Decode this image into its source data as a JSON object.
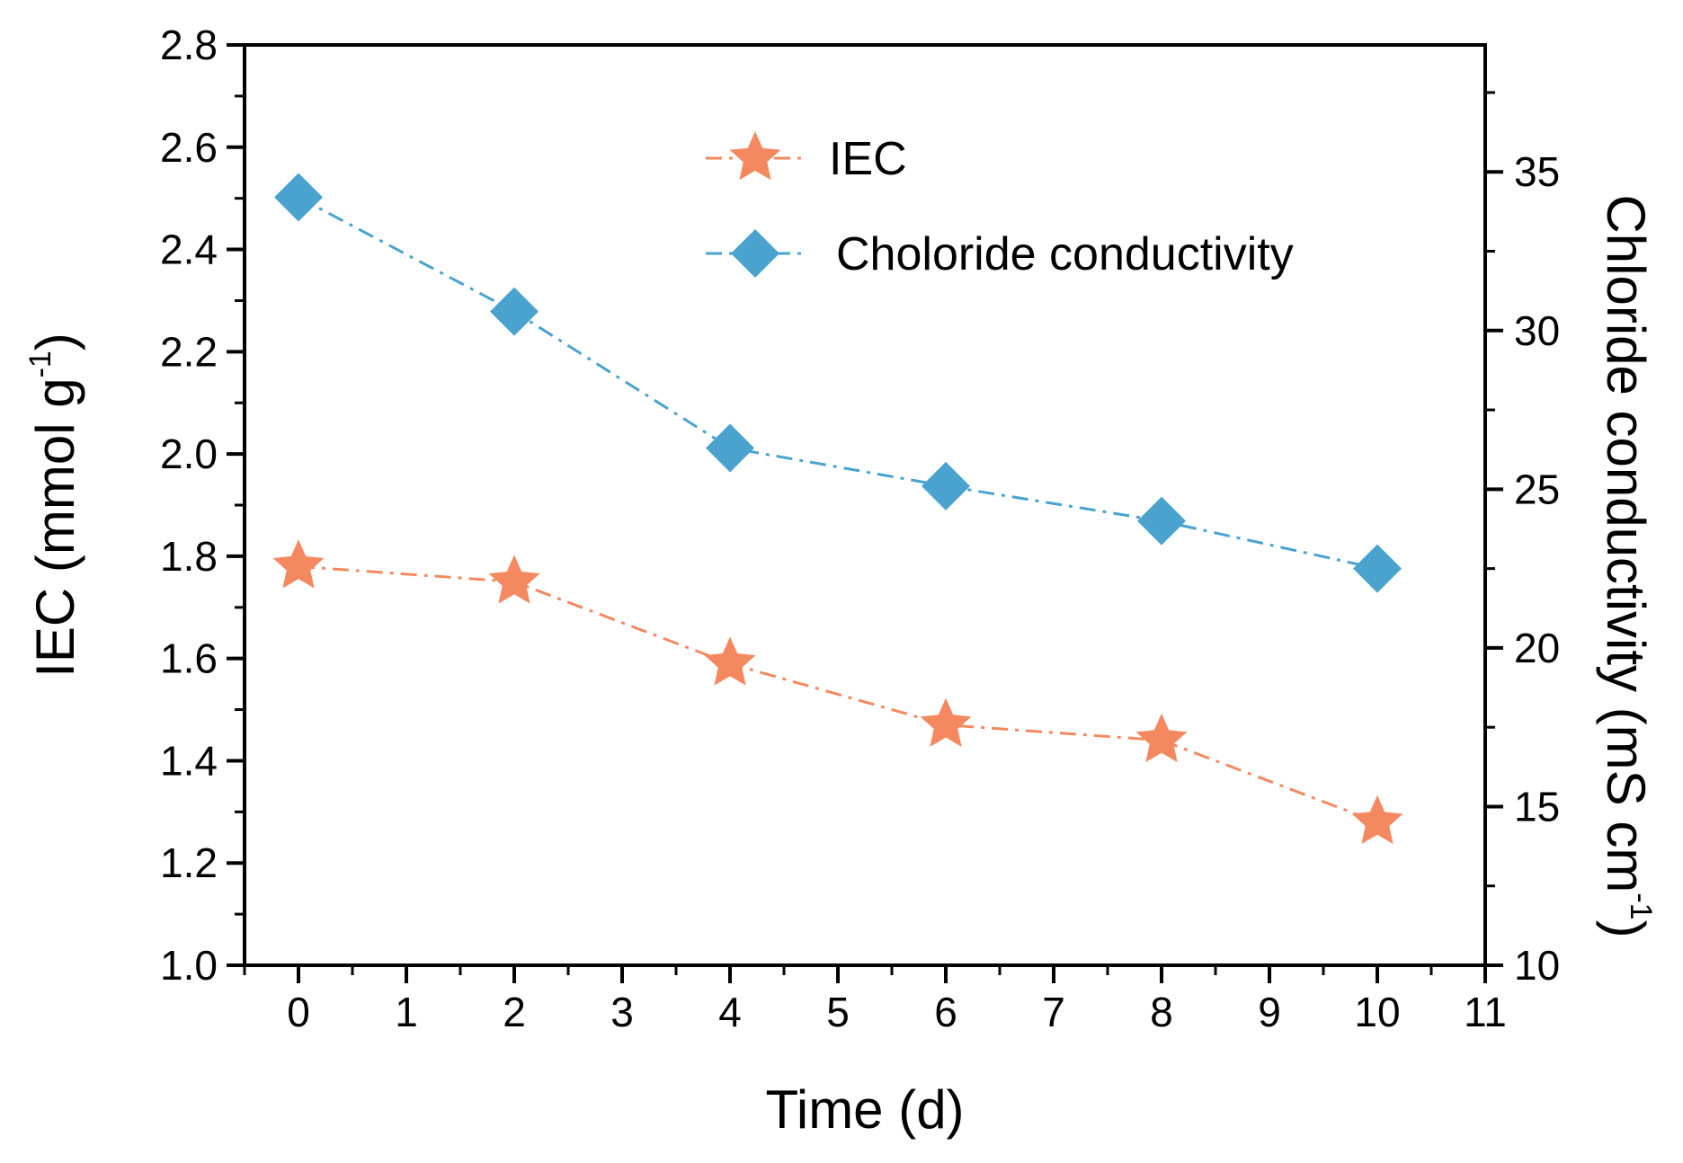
{
  "chart_data": {
    "type": "line",
    "x": [
      0,
      2,
      4,
      6,
      8,
      10
    ],
    "xlabel": "Time (d)",
    "xlim": [
      -0.5,
      11
    ],
    "xticks": [
      "0",
      "1",
      "2",
      "3",
      "4",
      "5",
      "6",
      "7",
      "8",
      "9",
      "10",
      "11"
    ],
    "ylabel_left": {
      "main": "IEC (mmol g",
      "sup": "-1",
      "close": ")"
    },
    "ylim_left": [
      1.0,
      2.8
    ],
    "yticks_left": [
      "1.0",
      "1.2",
      "1.4",
      "1.6",
      "1.8",
      "2.0",
      "2.2",
      "2.4",
      "2.6",
      "2.8"
    ],
    "ylabel_right": {
      "main": "Chloride conductivity (mS cm",
      "sup": "-1",
      "close": ")"
    },
    "ylim_right": [
      10,
      39
    ],
    "yticks_right": [
      "10",
      "15",
      "20",
      "25",
      "30",
      "35"
    ],
    "series": [
      {
        "name": "IEC",
        "axis": "left",
        "marker": "star",
        "line_style": "dash-dot",
        "color": "#f4895f",
        "values": [
          1.78,
          1.75,
          1.59,
          1.47,
          1.44,
          1.28
        ]
      },
      {
        "name": "Choloride conductivity",
        "axis": "right",
        "marker": "diamond",
        "line_style": "dash-dot",
        "color": "#4aa3cf",
        "values": [
          34.2,
          30.6,
          26.3,
          25.1,
          24.0,
          22.5
        ]
      }
    ],
    "legend_position": "top-center"
  }
}
